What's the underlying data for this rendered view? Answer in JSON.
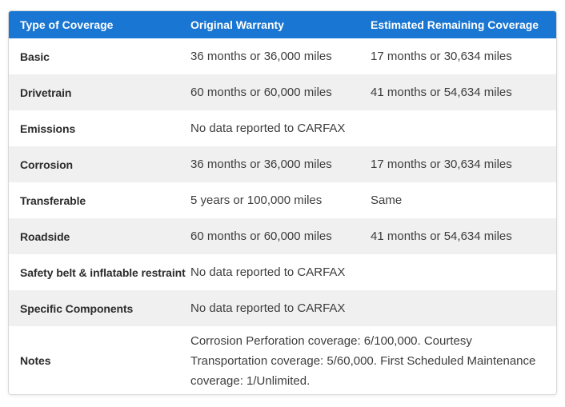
{
  "table": {
    "headers": [
      "Type of Coverage",
      "Original Warranty",
      "Estimated Remaining Coverage"
    ],
    "rows": [
      {
        "type": "Basic",
        "original": "36 months or 36,000 miles",
        "remaining": "17 months or 30,634 miles"
      },
      {
        "type": "Drivetrain",
        "original": "60 months or 60,000 miles",
        "remaining": "41 months or 54,634 miles"
      },
      {
        "type": "Emissions",
        "original": "No data reported to CARFAX",
        "remaining": ""
      },
      {
        "type": "Corrosion",
        "original": "36 months or 36,000 miles",
        "remaining": "17 months or 30,634 miles"
      },
      {
        "type": "Transferable",
        "original": "5 years or 100,000 miles",
        "remaining": "Same"
      },
      {
        "type": "Roadside",
        "original": "60 months or 60,000 miles",
        "remaining": "41 months or 54,634 miles"
      },
      {
        "type": "Safety belt & inflatable restraint",
        "original": "No data reported to CARFAX",
        "remaining": ""
      },
      {
        "type": "Specific Components",
        "original": "No data reported to CARFAX",
        "remaining": ""
      }
    ],
    "notes": {
      "label": "Notes",
      "text": "Corrosion Perforation coverage: 6/100,000. Courtesy Transportation coverage: 5/60,000. First Scheduled Maintenance coverage: 1/Unlimited."
    }
  },
  "colors": {
    "header_bg": "#1976d2",
    "header_text": "#ffffff",
    "row_bg": "#ffffff",
    "row_alt_bg": "#f0f0f0",
    "label_text": "#2c2c2c",
    "body_text": "#3d3d3d",
    "border": "#d8d8d8"
  }
}
